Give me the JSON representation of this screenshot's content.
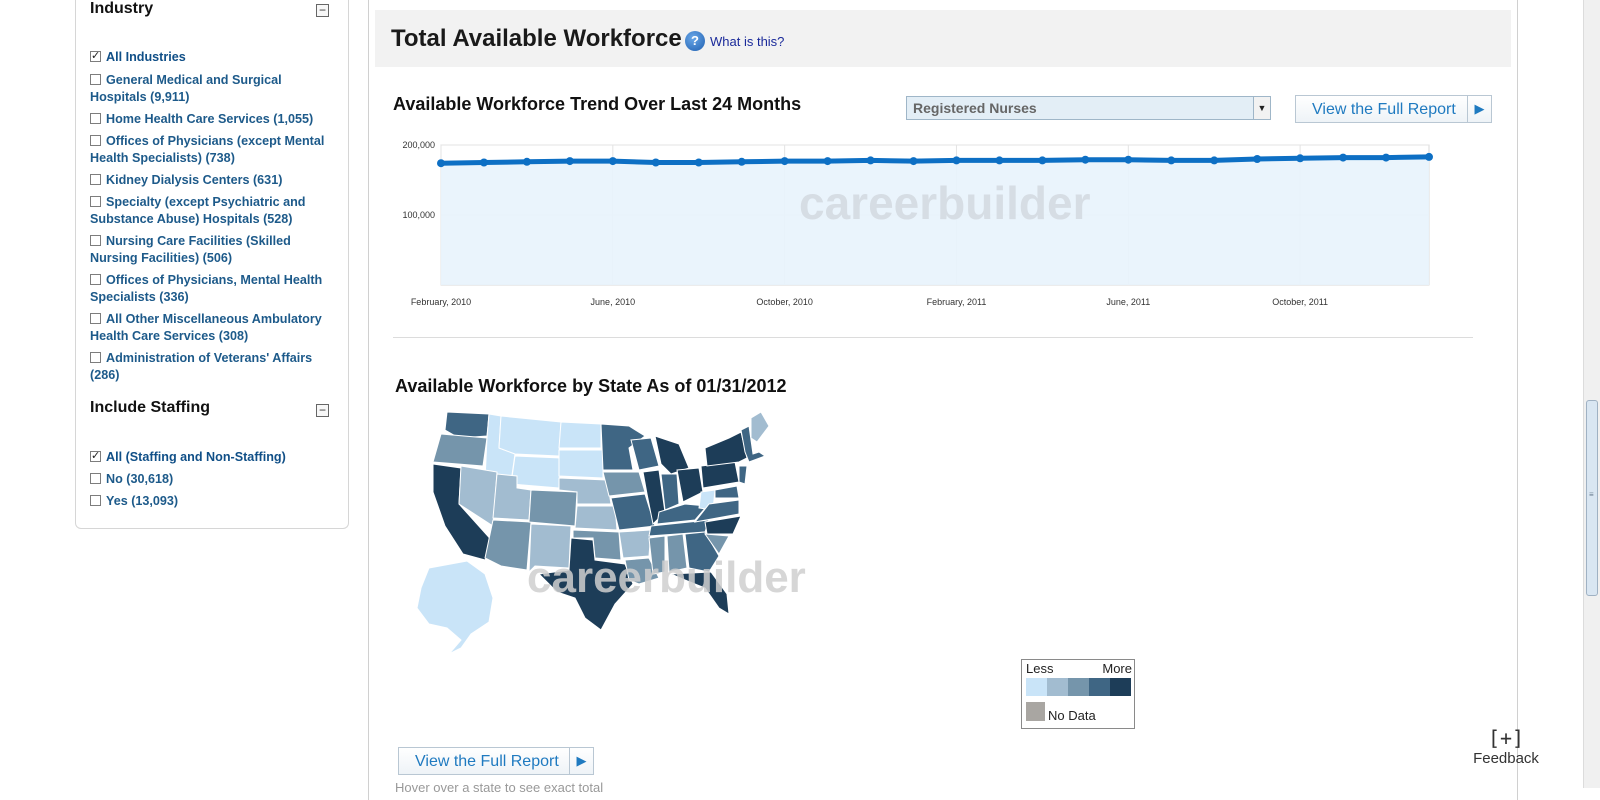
{
  "filters": {
    "industry": {
      "heading": "Industry",
      "collapse_icon": "minus-icon",
      "options": [
        {
          "label": "All Industries",
          "checked": true
        },
        {
          "label": "General Medical and Surgical Hospitals (9,911)",
          "checked": false
        },
        {
          "label": "Home Health Care Services (1,055)",
          "checked": false
        },
        {
          "label": "Offices of Physicians (except Mental Health Specialists) (738)",
          "checked": false
        },
        {
          "label": "Kidney Dialysis Centers (631)",
          "checked": false
        },
        {
          "label": "Specialty (except Psychiatric and Substance Abuse) Hospitals (528)",
          "checked": false
        },
        {
          "label": "Nursing Care Facilities (Skilled Nursing Facilities) (506)",
          "checked": false
        },
        {
          "label": "Offices of Physicians, Mental Health Specialists (336)",
          "checked": false
        },
        {
          "label": "All Other Miscellaneous Ambulatory Health Care Services (308)",
          "checked": false
        },
        {
          "label": "Administration of Veterans' Affairs (286)",
          "checked": false
        }
      ]
    },
    "staffing": {
      "heading": "Include Staffing",
      "collapse_icon": "minus-icon",
      "options": [
        {
          "label": "All (Staffing and Non-Staffing)",
          "checked": true
        },
        {
          "label": "No (30,618)",
          "checked": false
        },
        {
          "label": "Yes (13,093)",
          "checked": false
        }
      ]
    }
  },
  "main": {
    "title": "Total Available Workforce",
    "help_icon": "question-icon",
    "help_link": "What is this?",
    "trend": {
      "title": "Available Workforce Trend Over Last 24 Months",
      "dropdown_value": "Registered Nurses",
      "report_button": "View the Full Report",
      "watermark": "careerbuilder"
    },
    "map": {
      "title": "Available Workforce by State As of 01/31/2012",
      "watermark": "careerbuilder",
      "legend": {
        "less": "Less",
        "more": "More",
        "no_data": "No Data",
        "colors": [
          "#c9e4f8",
          "#a2bcd0",
          "#7595ab",
          "#3f6684",
          "#1d3d58"
        ],
        "no_data_color": "#a9a6a2"
      },
      "report_button": "View the Full Report",
      "hover_note": "Hover over a state to see exact total"
    }
  },
  "feedback": {
    "icon": "expand-bracket-icon",
    "label": "Feedback"
  },
  "chart_data": {
    "type": "area",
    "title": "Available Workforce Trend Over Last 24 Months",
    "x": [
      "February, 2010",
      "March, 2010",
      "April, 2010",
      "May, 2010",
      "June, 2010",
      "July, 2010",
      "August, 2010",
      "September, 2010",
      "October, 2010",
      "November, 2010",
      "December, 2010",
      "January, 2011",
      "February, 2011",
      "March, 2011",
      "April, 2011",
      "May, 2011",
      "June, 2011",
      "July, 2011",
      "August, 2011",
      "September, 2011",
      "October, 2011",
      "November, 2011",
      "December, 2011",
      "January, 2012"
    ],
    "series": [
      {
        "values": [
          174000,
          175000,
          176000,
          177000,
          177000,
          175000,
          175000,
          176000,
          177000,
          177000,
          178000,
          177000,
          178000,
          178000,
          178000,
          179000,
          179000,
          178000,
          178000,
          180000,
          181000,
          182000,
          182000,
          183000
        ]
      }
    ],
    "xticks": [
      "February, 2010",
      "June, 2010",
      "October, 2010",
      "February, 2011",
      "June, 2011",
      "October, 2011"
    ],
    "yticks": [
      "100,000",
      "200,000"
    ],
    "ylim": [
      0,
      200000
    ],
    "grid": true,
    "color": "#0d6fc4",
    "fill": "#e8f3fc"
  }
}
